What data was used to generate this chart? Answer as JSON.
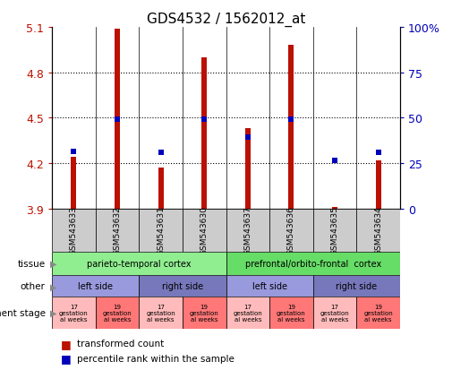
{
  "title": "GDS4532 / 1562012_at",
  "samples": [
    "GSM543633",
    "GSM543632",
    "GSM543631",
    "GSM543630",
    "GSM543637",
    "GSM543636",
    "GSM543635",
    "GSM543634"
  ],
  "bar_values": [
    4.24,
    5.09,
    4.17,
    4.9,
    4.43,
    4.98,
    3.91,
    4.22
  ],
  "dot_values": [
    4.28,
    4.49,
    4.27,
    4.49,
    4.37,
    4.49,
    4.22,
    4.27
  ],
  "ylim_left": [
    3.9,
    5.1
  ],
  "ylim_right": [
    0,
    100
  ],
  "yticks_left": [
    3.9,
    4.2,
    4.5,
    4.8,
    5.1
  ],
  "yticks_right": [
    0,
    25,
    50,
    75,
    100
  ],
  "dotted_lines": [
    4.2,
    4.5,
    4.8
  ],
  "tissue_groups": [
    {
      "label": "parieto-temporal cortex",
      "start": 0,
      "end": 4,
      "color": "#90EE90"
    },
    {
      "label": "prefrontal/orbito-frontal  cortex",
      "start": 4,
      "end": 8,
      "color": "#66DD66"
    }
  ],
  "other_groups": [
    {
      "label": "left side",
      "start": 0,
      "end": 2,
      "color": "#9999DD"
    },
    {
      "label": "right side",
      "start": 2,
      "end": 4,
      "color": "#7777BB"
    },
    {
      "label": "left side",
      "start": 4,
      "end": 6,
      "color": "#9999DD"
    },
    {
      "label": "right side",
      "start": 6,
      "end": 8,
      "color": "#7777BB"
    }
  ],
  "dev_groups": [
    {
      "label": "17\ngestation\nal weeks",
      "start": 0,
      "end": 1,
      "color": "#FFBBBB"
    },
    {
      "label": "19\ngestation\nal weeks",
      "start": 1,
      "end": 2,
      "color": "#FF7777"
    },
    {
      "label": "17\ngestation\nal weeks",
      "start": 2,
      "end": 3,
      "color": "#FFBBBB"
    },
    {
      "label": "19\ngestation\nal weeks",
      "start": 3,
      "end": 4,
      "color": "#FF7777"
    },
    {
      "label": "17\ngestation\nal weeks",
      "start": 4,
      "end": 5,
      "color": "#FFBBBB"
    },
    {
      "label": "19\ngestation\nal weeks",
      "start": 5,
      "end": 6,
      "color": "#FF7777"
    },
    {
      "label": "17\ngestation\nal weeks",
      "start": 6,
      "end": 7,
      "color": "#FFBBBB"
    },
    {
      "label": "19\ngestation\nal weeks",
      "start": 7,
      "end": 8,
      "color": "#FF7777"
    }
  ],
  "bar_color": "#BB1100",
  "dot_color": "#0000BB",
  "bar_bottom": 3.9,
  "xticklabel_bg": "#CCCCCC",
  "legend_bar_label": "transformed count",
  "legend_dot_label": "percentile rank within the sample"
}
